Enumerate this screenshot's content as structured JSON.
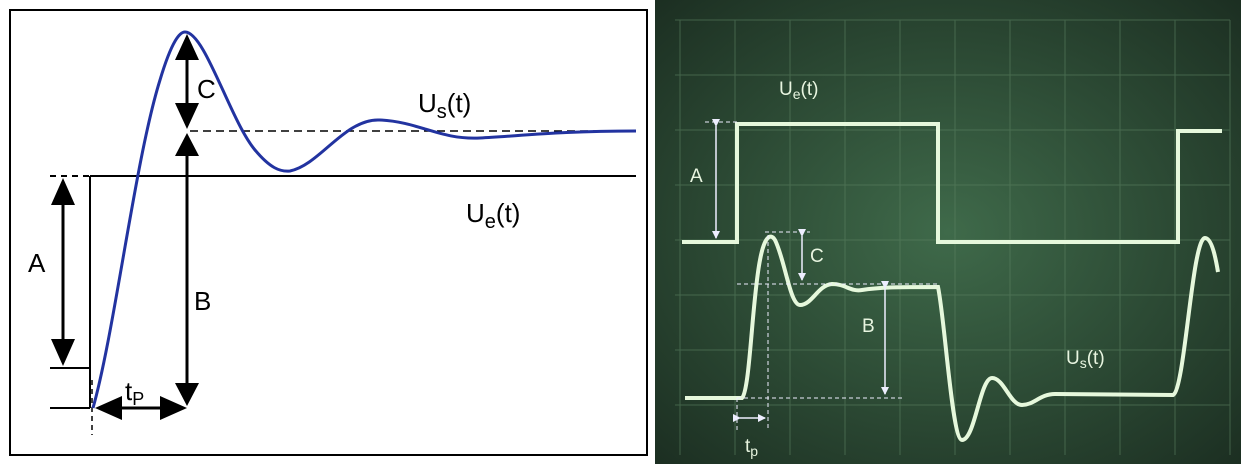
{
  "left": {
    "c": "C",
    "a": "A",
    "b": "B",
    "us": [
      "U",
      "s",
      "(t)"
    ],
    "ue": [
      "U",
      "e",
      "(t)"
    ],
    "tp": [
      "t",
      "P"
    ]
  },
  "right": {
    "ue": [
      "U",
      "e",
      "(t)"
    ],
    "a": "A",
    "c": "C",
    "b": "B",
    "us": [
      "U",
      "s",
      "(t)"
    ],
    "tp": [
      "t",
      "p"
    ]
  }
}
